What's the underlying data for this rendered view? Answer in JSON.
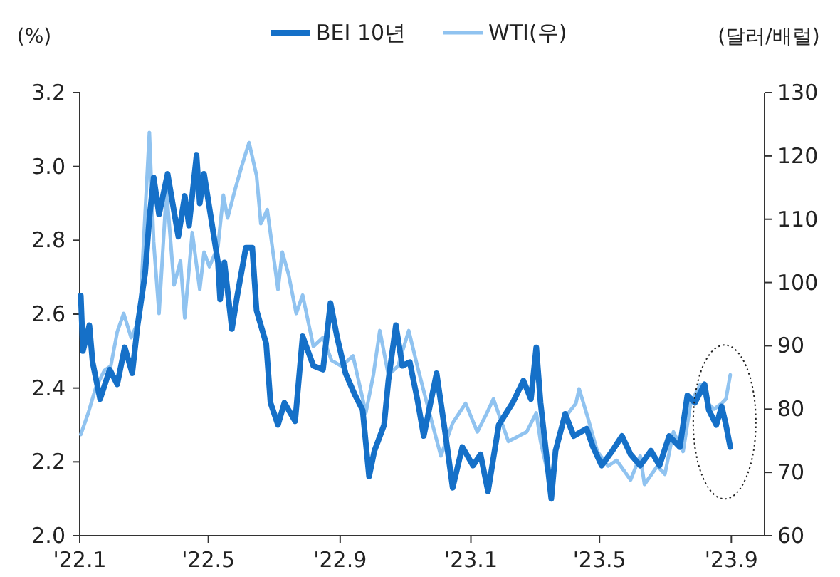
{
  "chart_data": {
    "type": "line",
    "ylabel": "(%)",
    "y2label": "(달러/배럴)",
    "legend": "top",
    "grid": false,
    "marker": "none",
    "line_style": "solid",
    "xlim": [
      "2022-01-01",
      "2023-10-02"
    ],
    "xticks": [
      {
        "value": "2022-01-01",
        "label": "'22.1"
      },
      {
        "value": "2022-05-01",
        "label": "'22.5"
      },
      {
        "value": "2022-09-01",
        "label": "'22.9"
      },
      {
        "value": "2023-01-01",
        "label": "'23.1"
      },
      {
        "value": "2023-05-01",
        "label": "'23.5"
      },
      {
        "value": "2023-09-01",
        "label": "'23.9"
      }
    ],
    "ylim": [
      2.0,
      3.2
    ],
    "yticks": [
      {
        "value": 2.0,
        "label": "2.0"
      },
      {
        "value": 2.2,
        "label": "2.2"
      },
      {
        "value": 2.4,
        "label": "2.4"
      },
      {
        "value": 2.6,
        "label": "2.6"
      },
      {
        "value": 2.8,
        "label": "2.8"
      },
      {
        "value": 3.0,
        "label": "3.0"
      },
      {
        "value": 3.2,
        "label": "3.2"
      }
    ],
    "y2lim": [
      60,
      130
    ],
    "y2ticks": [
      60,
      70,
      80,
      90,
      100,
      110,
      120,
      130
    ],
    "series": [
      {
        "name": "BEI 10년",
        "color": "#1570c8",
        "axis": "y",
        "x": [
          "2022-01-02",
          "2022-01-04",
          "2022-01-10",
          "2022-01-13",
          "2022-01-20",
          "2022-01-29",
          "2022-02-05",
          "2022-02-12",
          "2022-02-19",
          "2022-02-24",
          "2022-03-03",
          "2022-03-07",
          "2022-03-11",
          "2022-03-16",
          "2022-03-24",
          "2022-04-03",
          "2022-04-09",
          "2022-04-13",
          "2022-04-20",
          "2022-04-23",
          "2022-04-27",
          "2022-05-03",
          "2022-05-10",
          "2022-05-12",
          "2022-05-16",
          "2022-05-23",
          "2022-05-28",
          "2022-06-05",
          "2022-06-11",
          "2022-06-15",
          "2022-06-24",
          "2022-06-28",
          "2022-07-05",
          "2022-07-11",
          "2022-07-21",
          "2022-07-28",
          "2022-08-07",
          "2022-08-16",
          "2022-08-23",
          "2022-08-29",
          "2022-09-06",
          "2022-09-15",
          "2022-09-22",
          "2022-09-28",
          "2022-10-03",
          "2022-10-12",
          "2022-10-16",
          "2022-10-23",
          "2022-10-29",
          "2022-11-05",
          "2022-11-12",
          "2022-11-18",
          "2022-11-30",
          "2022-12-08",
          "2022-12-15",
          "2022-12-24",
          "2023-01-03",
          "2023-01-10",
          "2023-01-17",
          "2023-01-27",
          "2023-02-09",
          "2023-02-19",
          "2023-02-26",
          "2023-03-03",
          "2023-03-07",
          "2023-03-17",
          "2023-03-21",
          "2023-03-30",
          "2023-04-07",
          "2023-04-19",
          "2023-04-25",
          "2023-05-03",
          "2023-05-13",
          "2023-05-22",
          "2023-05-30",
          "2023-06-08",
          "2023-06-18",
          "2023-06-26",
          "2023-07-05",
          "2023-07-15",
          "2023-07-22",
          "2023-07-29",
          "2023-08-07",
          "2023-08-11",
          "2023-08-18",
          "2023-08-23",
          "2023-08-27",
          "2023-08-31"
        ],
        "values": [
          2.65,
          2.5,
          2.57,
          2.47,
          2.37,
          2.45,
          2.41,
          2.51,
          2.44,
          2.57,
          2.71,
          2.86,
          2.97,
          2.87,
          2.98,
          2.81,
          2.92,
          2.84,
          3.03,
          2.9,
          2.98,
          2.87,
          2.74,
          2.64,
          2.74,
          2.56,
          2.65,
          2.78,
          2.78,
          2.61,
          2.52,
          2.36,
          2.3,
          2.36,
          2.31,
          2.54,
          2.46,
          2.45,
          2.63,
          2.54,
          2.44,
          2.38,
          2.34,
          2.16,
          2.23,
          2.3,
          2.42,
          2.57,
          2.46,
          2.47,
          2.37,
          2.27,
          2.44,
          2.28,
          2.13,
          2.24,
          2.19,
          2.22,
          2.12,
          2.3,
          2.36,
          2.42,
          2.37,
          2.51,
          2.36,
          2.1,
          2.23,
          2.33,
          2.27,
          2.29,
          2.24,
          2.19,
          2.23,
          2.27,
          2.22,
          2.19,
          2.23,
          2.19,
          2.27,
          2.24,
          2.38,
          2.36,
          2.41,
          2.34,
          2.3,
          2.35,
          2.3,
          2.24
        ]
      },
      {
        "name": "WTI(우)",
        "color": "#90c3f0",
        "axis": "y2",
        "x": [
          "2022-01-02",
          "2022-01-09",
          "2022-01-16",
          "2022-01-24",
          "2022-01-30",
          "2022-02-05",
          "2022-02-11",
          "2022-02-18",
          "2022-02-26",
          "2022-03-03",
          "2022-03-07",
          "2022-03-11",
          "2022-03-16",
          "2022-03-23",
          "2022-03-30",
          "2022-04-05",
          "2022-04-09",
          "2022-04-16",
          "2022-04-23",
          "2022-04-27",
          "2022-05-02",
          "2022-05-10",
          "2022-05-15",
          "2022-05-19",
          "2022-05-26",
          "2022-06-01",
          "2022-06-08",
          "2022-06-15",
          "2022-06-19",
          "2022-06-25",
          "2022-07-05",
          "2022-07-09",
          "2022-07-15",
          "2022-07-22",
          "2022-07-28",
          "2022-08-07",
          "2022-08-16",
          "2022-08-24",
          "2022-09-02",
          "2022-09-13",
          "2022-09-25",
          "2022-10-02",
          "2022-10-08",
          "2022-10-16",
          "2022-10-25",
          "2022-11-04",
          "2022-11-12",
          "2022-11-21",
          "2022-12-04",
          "2022-12-15",
          "2022-12-27",
          "2023-01-07",
          "2023-01-16",
          "2023-01-22",
          "2023-02-05",
          "2023-02-22",
          "2023-03-03",
          "2023-03-07",
          "2023-03-17",
          "2023-03-23",
          "2023-03-30",
          "2023-04-09",
          "2023-04-12",
          "2023-04-20",
          "2023-04-29",
          "2023-05-09",
          "2023-05-17",
          "2023-05-30",
          "2023-06-08",
          "2023-06-12",
          "2023-06-24",
          "2023-07-01",
          "2023-07-09",
          "2023-07-18",
          "2023-07-25",
          "2023-08-03",
          "2023-08-10",
          "2023-08-16",
          "2023-08-23",
          "2023-08-27",
          "2023-08-31"
        ],
        "values": [
          76.0,
          79.4,
          83.4,
          86.1,
          86.8,
          92.2,
          95.1,
          91.3,
          94.4,
          110.9,
          123.7,
          106.4,
          95.1,
          114.7,
          99.6,
          103.4,
          94.4,
          107.9,
          98.9,
          104.8,
          102.5,
          105.7,
          113.8,
          110.2,
          114.7,
          118.3,
          122.1,
          116.9,
          109.3,
          111.5,
          98.9,
          104.8,
          101.2,
          95.1,
          98.0,
          89.9,
          91.3,
          87.7,
          86.8,
          88.4,
          79.4,
          85.4,
          92.4,
          85.4,
          86.8,
          92.4,
          86.8,
          80.9,
          72.6,
          77.8,
          80.9,
          76.4,
          79.4,
          81.6,
          74.9,
          76.4,
          79.4,
          74.9,
          67.4,
          75.5,
          78.7,
          80.9,
          83.2,
          78.7,
          73.3,
          71.0,
          71.9,
          68.8,
          72.6,
          68.1,
          71.0,
          69.7,
          76.4,
          73.3,
          80.9,
          83.9,
          80.9,
          80.0,
          80.9,
          81.6,
          85.4
        ]
      }
    ]
  }
}
